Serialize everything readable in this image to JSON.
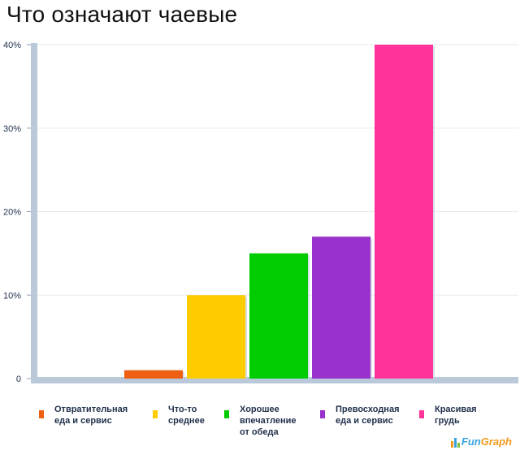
{
  "title": "Что означают чаевые",
  "chart_data": {
    "type": "bar",
    "title": "Что означают чаевые",
    "categories": [
      "Отвратительная\nеда и сервис",
      "Что-то\nсреднее",
      "Хорошее\nвпечатление\nот обеда",
      "Превосходная\nеда и сервис",
      "Красивая\nгрудь"
    ],
    "values": [
      1,
      10,
      15,
      17,
      40
    ],
    "colors": [
      "#ee5f13",
      "#ffcc00",
      "#00cc00",
      "#9932cc",
      "#ff3399"
    ],
    "ylim": [
      0,
      40
    ],
    "yticks": [
      "0",
      "10%",
      "20%",
      "30%",
      "40%"
    ],
    "ytick_values": [
      0,
      10,
      20,
      30,
      40
    ],
    "grid": true,
    "legend_position": "bottom",
    "xlabel": "",
    "ylabel": ""
  },
  "branding": {
    "part1": "Fun",
    "part2": "Graph"
  }
}
